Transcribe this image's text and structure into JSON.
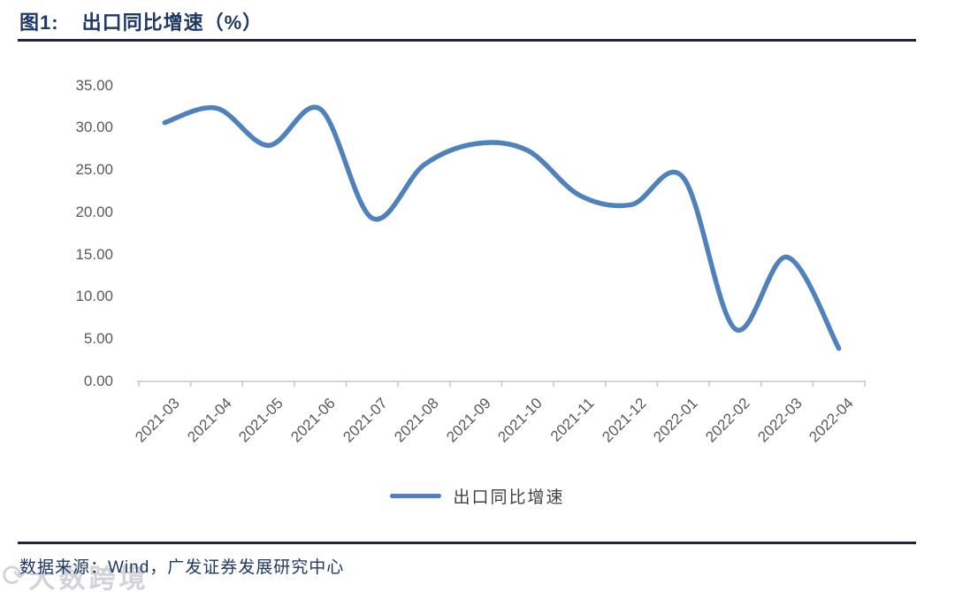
{
  "figure": {
    "label": "图1:",
    "title": "出口同比增速（%）"
  },
  "chart_data": {
    "type": "line",
    "title": "出口同比增速（%）",
    "categories": [
      "2021-03",
      "2021-04",
      "2021-05",
      "2021-06",
      "2021-07",
      "2021-08",
      "2021-09",
      "2021-10",
      "2021-11",
      "2021-12",
      "2022-01",
      "2022-02",
      "2022-03",
      "2022-04"
    ],
    "series": [
      {
        "name": "出口同比增速",
        "values": [
          30.6,
          32.3,
          27.9,
          32.2,
          19.3,
          25.6,
          28.1,
          27.3,
          22.0,
          20.9,
          24.1,
          6.2,
          14.7,
          3.9
        ]
      }
    ],
    "xlabel": "",
    "ylabel": "",
    "ylim": [
      0,
      35
    ],
    "ytick_step": 5,
    "yticks": [
      "35.00",
      "30.00",
      "25.00",
      "20.00",
      "15.00",
      "10.00",
      "5.00",
      "0.00"
    ],
    "grid": false,
    "legend_position": "bottom",
    "line_smooth": true
  },
  "legend": {
    "label": "出口同比增速"
  },
  "footer": {
    "source": "数据来源：Wind，广发证券发展研究中心"
  },
  "watermark": {
    "icon": "circular-arrow-logo",
    "text": "大数跨境"
  },
  "colors": {
    "title_navy": "#1F3864",
    "line_blue": "#4F81BD",
    "axis_gray": "#C6C6C6",
    "tick_text_gray": "#595959",
    "legend_text_gray": "#404040",
    "divider_dark": "#26263A"
  }
}
